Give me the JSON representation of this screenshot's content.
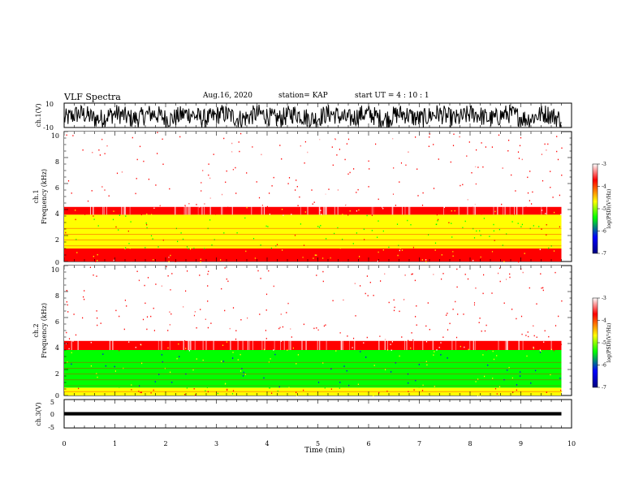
{
  "header": {
    "title": "VLF Spectra",
    "date": "Aug.16, 2020",
    "station": "station= KAP",
    "start": "start  UT =   4 : 10 : 1"
  },
  "colorbar": {
    "label": "log(PSD)(V²/Hz)",
    "ticks": [
      "-3",
      "-4",
      "-5",
      "-6",
      "-7"
    ],
    "colors": [
      "#ffffff",
      "#ff0000",
      "#ffff00",
      "#00ff00",
      "#0000ff",
      "#000080"
    ]
  },
  "chart_data": [
    {
      "type": "line",
      "ylabel": "ch.1(V)",
      "ylim": [
        -10,
        10
      ],
      "ytick_labels": [
        "10",
        "-10"
      ],
      "description_series": "raw waveform channel 1",
      "values_range": [
        -10,
        10
      ]
    },
    {
      "type": "heatmap",
      "ylabel_top": "ch.1",
      "ylabel": "Frequency (kHz)",
      "ylim": [
        0,
        10
      ],
      "yticks": [
        0,
        2,
        4,
        6,
        8,
        10
      ],
      "ytick_labels": [
        "0",
        "2",
        "4",
        "6",
        "8",
        "10"
      ],
      "x_extent_min": [
        0,
        9.8
      ],
      "bands": [
        {
          "from": 4.2,
          "to": 10,
          "log_psd": -3
        },
        {
          "from": 3.6,
          "to": 4.2,
          "log_psd": -3.5
        },
        {
          "from": 1.0,
          "to": 3.6,
          "log_psd": -4.5
        },
        {
          "from": 0,
          "to": 1.0,
          "log_psd": -3.8
        }
      ],
      "clim": [
        -7,
        -3
      ]
    },
    {
      "type": "heatmap",
      "ylabel_top": "ch.2",
      "ylabel": "Frequency (kHz)",
      "ylim": [
        0,
        10
      ],
      "yticks": [
        0,
        2,
        4,
        6,
        8,
        10
      ],
      "ytick_labels": [
        "0",
        "2",
        "4",
        "6",
        "8",
        "10"
      ],
      "x_extent_min": [
        0,
        9.8
      ],
      "bands": [
        {
          "from": 4.2,
          "to": 10,
          "log_psd": -3
        },
        {
          "from": 3.5,
          "to": 4.2,
          "log_psd": -3.5
        },
        {
          "from": 0.6,
          "to": 3.5,
          "log_psd": -5
        },
        {
          "from": 0,
          "to": 0.6,
          "log_psd": -4
        }
      ],
      "clim": [
        -7,
        -3
      ]
    },
    {
      "type": "line",
      "ylabel": "ch.3(V)",
      "ylim": [
        -5,
        5
      ],
      "ytick_labels": [
        "5",
        "0",
        "-5"
      ],
      "values_range": [
        -0.6,
        0.6
      ]
    }
  ],
  "xaxis": {
    "label": "Time (min)",
    "xlim": [
      0,
      10
    ],
    "ticks": [
      "0",
      "1",
      "2",
      "3",
      "4",
      "5",
      "6",
      "7",
      "8",
      "9",
      "10"
    ]
  }
}
